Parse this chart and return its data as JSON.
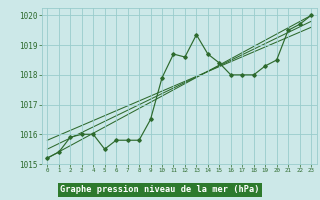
{
  "x": [
    0,
    1,
    2,
    3,
    4,
    5,
    6,
    7,
    8,
    9,
    10,
    11,
    12,
    13,
    14,
    15,
    16,
    17,
    18,
    19,
    20,
    21,
    22,
    23
  ],
  "y_main": [
    1015.2,
    1015.4,
    1015.9,
    1016.0,
    1016.0,
    1015.5,
    1015.8,
    1015.8,
    1015.8,
    1016.5,
    1017.9,
    1018.7,
    1018.6,
    1019.35,
    1018.7,
    1018.4,
    1018.0,
    1018.0,
    1018.0,
    1018.3,
    1018.5,
    1019.5,
    1019.7,
    1020.0
  ],
  "trend_lines": [
    {
      "x": [
        0,
        23
      ],
      "y": [
        1015.2,
        1020.0
      ]
    },
    {
      "x": [
        0,
        23
      ],
      "y": [
        1015.5,
        1019.8
      ]
    },
    {
      "x": [
        0,
        23
      ],
      "y": [
        1015.8,
        1019.6
      ]
    }
  ],
  "ylim": [
    1015.0,
    1020.25
  ],
  "xlim": [
    -0.5,
    23.5
  ],
  "yticks": [
    1015,
    1016,
    1017,
    1018,
    1019,
    1020
  ],
  "xticks": [
    0,
    1,
    2,
    3,
    4,
    5,
    6,
    7,
    8,
    9,
    10,
    11,
    12,
    13,
    14,
    15,
    16,
    17,
    18,
    19,
    20,
    21,
    22,
    23
  ],
  "line_color": "#2d6a2d",
  "bg_color": "#cce8e8",
  "grid_color": "#99cccc",
  "xlabel": "Graphe pression niveau de la mer (hPa)",
  "xlabel_color": "#1a4a1a"
}
